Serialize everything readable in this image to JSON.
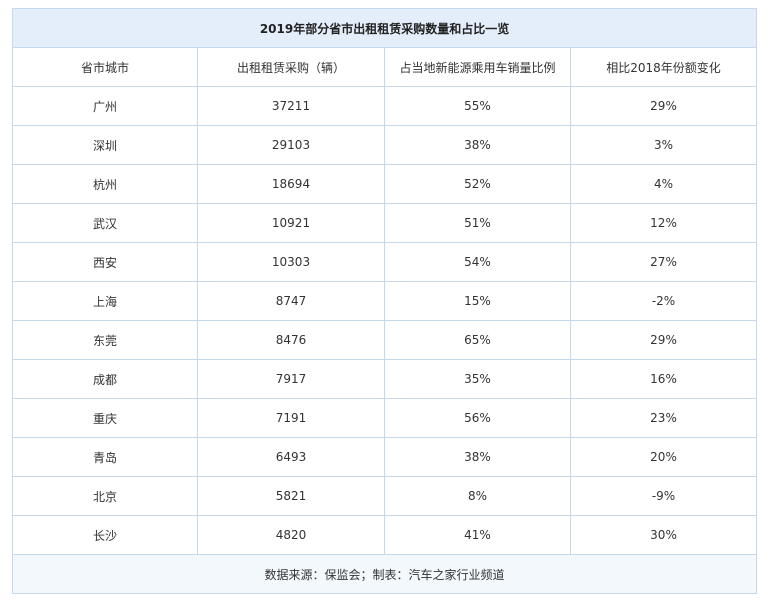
{
  "table": {
    "title": "2019年部分省市出租租赁采购数量和占比一览",
    "header": [
      "省市城市",
      "出租租赁采购（辆）",
      "占当地新能源乘用车销量比例",
      "相比2018年份额变化"
    ],
    "rows": [
      [
        "广州",
        "37211",
        "55%",
        "29%"
      ],
      [
        "深圳",
        "29103",
        "38%",
        "3%"
      ],
      [
        "杭州",
        "18694",
        "52%",
        "4%"
      ],
      [
        "武汉",
        "10921",
        "51%",
        "12%"
      ],
      [
        "西安",
        "10303",
        "54%",
        "27%"
      ],
      [
        "上海",
        "8747",
        "15%",
        "-2%"
      ],
      [
        "东莞",
        "8476",
        "65%",
        "29%"
      ],
      [
        "成都",
        "7917",
        "35%",
        "16%"
      ],
      [
        "重庆",
        "7191",
        "56%",
        "23%"
      ],
      [
        "青岛",
        "6493",
        "38%",
        "20%"
      ],
      [
        "北京",
        "5821",
        "8%",
        "-9%"
      ],
      [
        "长沙",
        "4820",
        "41%",
        "30%"
      ]
    ],
    "footer": "数据来源：保监会；制表：汽车之家行业频道"
  }
}
